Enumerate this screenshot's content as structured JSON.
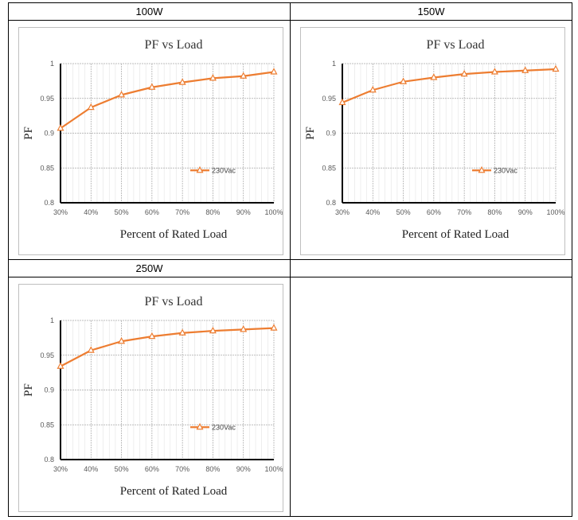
{
  "table": {
    "headers": [
      "100W",
      "150W",
      "250W",
      ""
    ]
  },
  "colors": {
    "series": "#ED7D31",
    "axis": "#000000",
    "grid": "#a6a6a6"
  },
  "chart_data": [
    {
      "type": "line",
      "title": "PF vs Load",
      "xlabel": "Percent of Rated Load",
      "ylabel": "PF",
      "categories": [
        "30%",
        "40%",
        "50%",
        "60%",
        "70%",
        "80%",
        "90%",
        "100%"
      ],
      "yticks": [
        "0.8",
        "0.85",
        "0.9",
        "0.95",
        "1"
      ],
      "ylim": [
        0.8,
        1
      ],
      "grid": true,
      "legend_position": "right",
      "series": [
        {
          "name": "230Vac",
          "values": [
            0.907,
            0.937,
            0.955,
            0.966,
            0.973,
            0.979,
            0.982,
            0.988
          ]
        }
      ]
    },
    {
      "type": "line",
      "title": "PF vs Load",
      "xlabel": "Percent of Rated Load",
      "ylabel": "PF",
      "categories": [
        "30%",
        "40%",
        "50%",
        "60%",
        "70%",
        "80%",
        "90%",
        "100%"
      ],
      "yticks": [
        "0.8",
        "0.85",
        "0.9",
        "0.95",
        "1"
      ],
      "ylim": [
        0.8,
        1
      ],
      "grid": true,
      "legend_position": "right",
      "series": [
        {
          "name": "230Vac",
          "values": [
            0.944,
            0.962,
            0.974,
            0.98,
            0.985,
            0.988,
            0.99,
            0.992
          ]
        }
      ]
    },
    {
      "type": "line",
      "title": "PF vs Load",
      "xlabel": "Percent of Rated Load",
      "ylabel": "PF",
      "categories": [
        "30%",
        "40%",
        "50%",
        "60%",
        "70%",
        "80%",
        "90%",
        "100%"
      ],
      "yticks": [
        "0.8",
        "0.85",
        "0.9",
        "0.95",
        "1"
      ],
      "ylim": [
        0.8,
        1
      ],
      "grid": true,
      "legend_position": "right",
      "series": [
        {
          "name": "230Vac",
          "values": [
            0.934,
            0.957,
            0.97,
            0.977,
            0.982,
            0.985,
            0.987,
            0.989
          ]
        }
      ]
    }
  ]
}
